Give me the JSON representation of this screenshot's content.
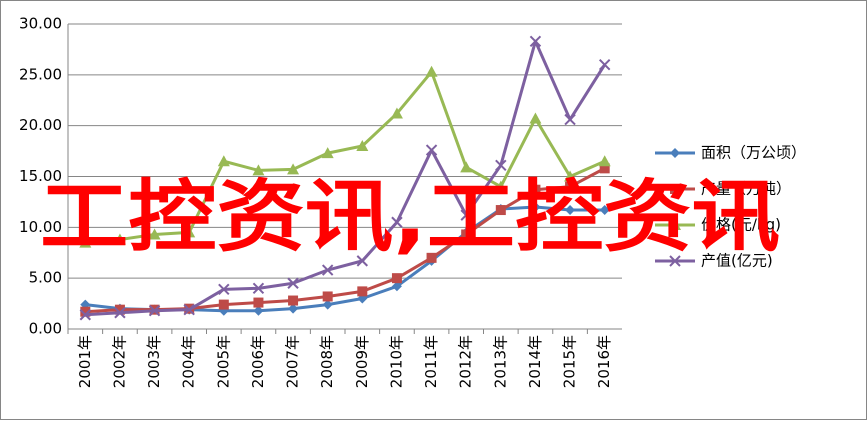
{
  "chart_data": {
    "type": "line",
    "categories": [
      "2001年",
      "2002年",
      "2003年",
      "2004年",
      "2005年",
      "2006年",
      "2007年",
      "2008年",
      "2009年",
      "2010年",
      "2011年",
      "2012年",
      "2013年",
      "2014年",
      "2015年",
      "2016年"
    ],
    "series": [
      {
        "name": "面积（万公顷）",
        "color": "#4a7ebb",
        "marker": "diamond",
        "values": [
          2.4,
          2.0,
          1.9,
          1.9,
          1.8,
          1.8,
          2.0,
          2.4,
          3.0,
          4.2,
          6.7,
          9.5,
          11.8,
          12.0,
          11.7,
          11.7
        ]
      },
      {
        "name": "产量（万吨）",
        "color": "#be4b48",
        "marker": "square",
        "values": [
          1.7,
          1.9,
          1.9,
          2.0,
          2.4,
          2.6,
          2.8,
          3.2,
          3.7,
          5.0,
          7.0,
          9.3,
          11.7,
          13.7,
          14.0,
          15.8
        ]
      },
      {
        "name": "价格(元/kg)",
        "color": "#98b954",
        "marker": "triangle",
        "values": [
          8.5,
          8.8,
          9.3,
          9.5,
          16.5,
          15.6,
          15.7,
          17.3,
          18.0,
          21.2,
          25.3,
          15.9,
          14.0,
          20.7,
          15.0,
          16.5
        ]
      },
      {
        "name": "产值(亿元)",
        "color": "#7d60a0",
        "marker": "x",
        "values": [
          1.4,
          1.6,
          1.8,
          1.9,
          3.9,
          4.0,
          4.5,
          5.8,
          6.7,
          10.5,
          17.6,
          11.2,
          16.1,
          28.3,
          20.6,
          26.0
        ]
      }
    ],
    "ylim": [
      0,
      30
    ],
    "yticks": [
      {
        "value": 0,
        "label": "0.00"
      },
      {
        "value": 5,
        "label": "5.00"
      },
      {
        "value": 10,
        "label": "10.00"
      },
      {
        "value": 15,
        "label": "15.00"
      },
      {
        "value": 20,
        "label": "20.00"
      },
      {
        "value": 25,
        "label": "25.00"
      },
      {
        "value": 30,
        "label": "30.00"
      }
    ],
    "grid": true,
    "legend": "right",
    "watermark": "工控资讯,工控资讯"
  }
}
